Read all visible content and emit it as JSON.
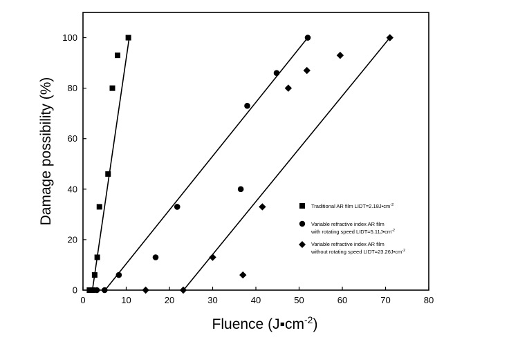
{
  "chart_data": {
    "type": "scatter",
    "title": "",
    "xlabel": "Fluence (J▪cm",
    "xlabel_sup": "-2",
    "xlabel_end": ")",
    "ylabel": "Damage possibility (%)",
    "xlim": [
      0,
      80
    ],
    "ylim": [
      0,
      110
    ],
    "xticks": [
      0,
      10,
      20,
      30,
      40,
      50,
      60,
      70,
      80
    ],
    "yticks": [
      0,
      20,
      40,
      60,
      80,
      100
    ],
    "grid": false,
    "legend_position": "bottom-right",
    "series": [
      {
        "name": "Traditional AR film  LIDT=2.18J•cm",
        "name_sup": "-2",
        "marker": "square",
        "points": [
          [
            1.5,
            0
          ],
          [
            2.2,
            0
          ],
          [
            2.7,
            6
          ],
          [
            3.3,
            13
          ],
          [
            3.8,
            33
          ],
          [
            5.8,
            46
          ],
          [
            6.8,
            80
          ],
          [
            8.0,
            93
          ],
          [
            10.5,
            100
          ]
        ],
        "fit_line": [
          [
            2.18,
            0
          ],
          [
            10.7,
            100
          ]
        ]
      },
      {
        "name": "Variable refractive index AR film",
        "name_line2": "with rotating speed  LIDT=5.11J•cm",
        "name_sup": "-2",
        "marker": "circle",
        "points": [
          [
            3.2,
            0
          ],
          [
            5.0,
            0
          ],
          [
            8.3,
            6
          ],
          [
            16.8,
            13
          ],
          [
            21.8,
            33
          ],
          [
            36.5,
            40
          ],
          [
            38.0,
            73
          ],
          [
            44.8,
            86
          ],
          [
            52.0,
            100
          ]
        ],
        "fit_line": [
          [
            5.11,
            0
          ],
          [
            52.0,
            100
          ]
        ]
      },
      {
        "name": "Variable refractive index AR film",
        "name_line2": "without rotating speed  LIDT=23.26J•cm",
        "name_sup": "-2",
        "marker": "diamond",
        "points": [
          [
            14.5,
            0
          ],
          [
            23.2,
            0
          ],
          [
            30.0,
            13
          ],
          [
            37.0,
            6
          ],
          [
            41.5,
            33
          ],
          [
            47.5,
            80
          ],
          [
            51.8,
            87
          ],
          [
            59.5,
            93
          ],
          [
            71.0,
            100
          ]
        ],
        "fit_line": [
          [
            23.26,
            0
          ],
          [
            71.0,
            100
          ]
        ]
      }
    ]
  }
}
